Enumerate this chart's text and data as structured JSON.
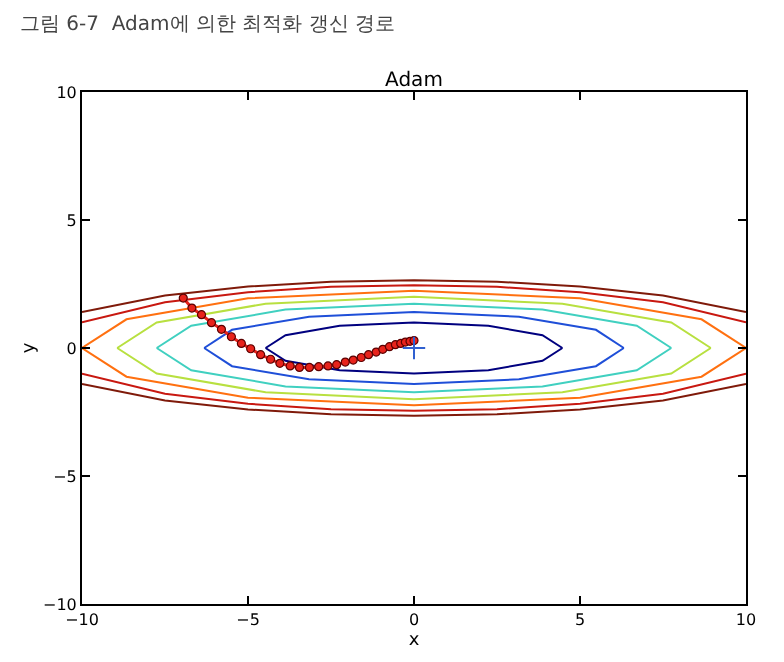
{
  "chart_data": {
    "type": "line",
    "title": "Adam",
    "xlabel": "x",
    "ylabel": "y",
    "annotations": [
      "그림 6-7  Adam에 의한 최적화 갱신 경로"
    ],
    "xlim": [
      -10,
      10
    ],
    "ylim": [
      -10,
      10
    ],
    "xticks": [
      -10,
      -5,
      0,
      5,
      10
    ],
    "yticks": [
      -10,
      -5,
      0,
      5,
      10
    ],
    "grid": false,
    "series": [
      {
        "color": "#00007f",
        "x": [
          -4.47,
          -3.87,
          -2.24,
          0,
          2.24,
          3.87,
          4.47
        ],
        "values": [
          0,
          0.5,
          0.87,
          1,
          0.87,
          0.5,
          0
        ]
      },
      {
        "color": "#00007f",
        "x": [
          -4.47,
          -3.87,
          -2.24,
          0,
          2.24,
          3.87,
          4.47
        ],
        "values": [
          0,
          -0.5,
          -0.87,
          -1,
          -0.87,
          -0.5,
          0
        ]
      },
      {
        "color": "#1f4fd8",
        "x": [
          -6.32,
          -5.48,
          -3.16,
          0,
          3.16,
          5.48,
          6.32
        ],
        "values": [
          0,
          0.71,
          1.22,
          1.41,
          1.22,
          0.71,
          0
        ]
      },
      {
        "color": "#1f4fd8",
        "x": [
          -6.32,
          -5.48,
          -3.16,
          0,
          3.16,
          5.48,
          6.32
        ],
        "values": [
          0,
          -0.71,
          -1.22,
          -1.41,
          -1.22,
          -0.71,
          0
        ]
      },
      {
        "color": "#40d0c0",
        "x": [
          -7.75,
          -6.71,
          -3.87,
          0,
          3.87,
          6.71,
          7.75
        ],
        "values": [
          0,
          0.87,
          1.5,
          1.73,
          1.5,
          0.87,
          0
        ]
      },
      {
        "color": "#40d0c0",
        "x": [
          -7.75,
          -6.71,
          -3.87,
          0,
          3.87,
          6.71,
          7.75
        ],
        "values": [
          0,
          -0.87,
          -1.5,
          -1.73,
          -1.5,
          -0.87,
          0
        ]
      },
      {
        "color": "#b8e040",
        "x": [
          -8.94,
          -7.75,
          -4.47,
          0,
          4.47,
          7.75,
          8.94
        ],
        "values": [
          0,
          1,
          1.73,
          2,
          1.73,
          1,
          0
        ]
      },
      {
        "color": "#b8e040",
        "x": [
          -8.94,
          -7.75,
          -4.47,
          0,
          4.47,
          7.75,
          8.94
        ],
        "values": [
          0,
          -1,
          -1.73,
          -2,
          -1.73,
          -1,
          0
        ]
      },
      {
        "color": "#ff7010",
        "x": [
          -10,
          -8.66,
          -5,
          0,
          5,
          8.66,
          10
        ],
        "values": [
          0,
          1.12,
          1.94,
          2.24,
          1.94,
          1.12,
          0
        ]
      },
      {
        "color": "#ff7010",
        "x": [
          -10,
          -8.66,
          -5,
          0,
          5,
          8.66,
          10
        ],
        "values": [
          0,
          -1.12,
          -1.94,
          -2.24,
          -1.94,
          -1.12,
          0
        ]
      },
      {
        "color": "#c81810",
        "x": [
          -10,
          -7.5,
          -5,
          -2.5,
          0,
          2.5,
          5,
          7.5,
          10
        ],
        "values": [
          1,
          1.79,
          2.18,
          2.39,
          2.45,
          2.39,
          2.18,
          1.79,
          1
        ]
      },
      {
        "color": "#c81810",
        "x": [
          -10,
          -7.5,
          -5,
          -2.5,
          0,
          2.5,
          5,
          7.5,
          10
        ],
        "values": [
          -1,
          -1.79,
          -2.18,
          -2.39,
          -2.45,
          -2.39,
          -2.18,
          -1.79,
          -1
        ]
      },
      {
        "color": "#7f1a0a",
        "x": [
          -10,
          -7.5,
          -5,
          -2.5,
          0,
          2.5,
          5,
          7.5,
          10
        ],
        "values": [
          1.41,
          2.05,
          2.4,
          2.59,
          2.65,
          2.59,
          2.4,
          2.05,
          1.41
        ]
      },
      {
        "color": "#7f1a0a",
        "x": [
          -10,
          -7.5,
          -5,
          -2.5,
          0,
          2.5,
          5,
          7.5,
          10
        ],
        "values": [
          -1.41,
          -2.05,
          -2.4,
          -2.59,
          -2.65,
          -2.59,
          -2.4,
          -2.05,
          -1.41
        ]
      },
      {
        "type": "line",
        "marker": "circle",
        "color": "#e8231c",
        "x": [
          -6.95,
          -6.69,
          -6.4,
          -6.1,
          -5.8,
          -5.5,
          -5.2,
          -4.92,
          -4.62,
          -4.32,
          -4.04,
          -3.73,
          -3.45,
          -3.15,
          -2.87,
          -2.59,
          -2.33,
          -2.07,
          -1.83,
          -1.59,
          -1.37,
          -1.14,
          -0.94,
          -0.74,
          -0.56,
          -0.4,
          -0.26,
          -0.12,
          0
        ],
        "values": [
          1.95,
          1.56,
          1.3,
          0.99,
          0.73,
          0.44,
          0.18,
          -0.03,
          -0.26,
          -0.44,
          -0.6,
          -0.7,
          -0.76,
          -0.76,
          -0.73,
          -0.7,
          -0.65,
          -0.55,
          -0.47,
          -0.37,
          -0.26,
          -0.16,
          -0.05,
          0.05,
          0.13,
          0.18,
          0.23,
          0.26,
          0.29
        ]
      },
      {
        "type": "scatter",
        "marker": "cross",
        "color": "#3060d0",
        "x": [
          0
        ],
        "values": [
          0
        ]
      }
    ]
  }
}
